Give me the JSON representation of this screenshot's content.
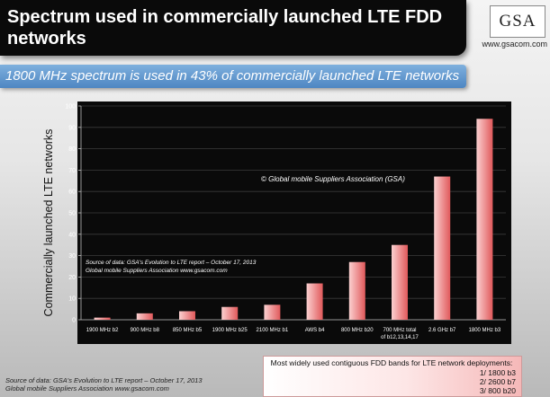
{
  "header": {
    "title": "Spectrum used in commercially launched LTE FDD\nnetworks",
    "logo_text": "GSA",
    "logo_url": "www.gsacom.com",
    "subtitle": "1800 MHz spectrum is used in 43% of commercially launched LTE networks"
  },
  "chart_data": {
    "type": "bar",
    "ylabel": "Commercially launched LTE networks",
    "xlabel": "",
    "ylim": [
      0,
      100
    ],
    "yticks": [
      0,
      10,
      20,
      30,
      40,
      50,
      60,
      70,
      80,
      90,
      100
    ],
    "categories": [
      "1900 MHz b2",
      "900 MHz b8",
      "850 MHz b5",
      "1900 MHz b25",
      "2100 MHz b1",
      "AWS b4",
      "800 MHz b20",
      "700 MHz total of b12,13,14,17",
      "2.6 GHz b7",
      "1800 MHz b3"
    ],
    "values": [
      1,
      3,
      4,
      6,
      7,
      17,
      27,
      35,
      67,
      94
    ],
    "annotations": {
      "copyright": "© Global mobile Suppliers Association (GSA)",
      "source_line1": "Source of data: GSA's Evolution to LTE report – October 17, 2013",
      "source_line2": "Global mobile Suppliers Association www.gsacom.com"
    },
    "colors": {
      "plot_bg": "#0a0a0a",
      "bar_light": "#fbd0d0",
      "bar_dark": "#e0595b"
    }
  },
  "footer": {
    "source_line1": "Source of data: GSA's Evolution to LTE report – October 17, 2013",
    "source_line2": "Global mobile Suppliers Association www.gsacom.com",
    "bands_title": "Most widely used contiguous FDD bands for LTE network deployments:",
    "bands": [
      "1/ 1800 b3",
      "2/ 2600 b7",
      "3/ 800 b20"
    ]
  }
}
